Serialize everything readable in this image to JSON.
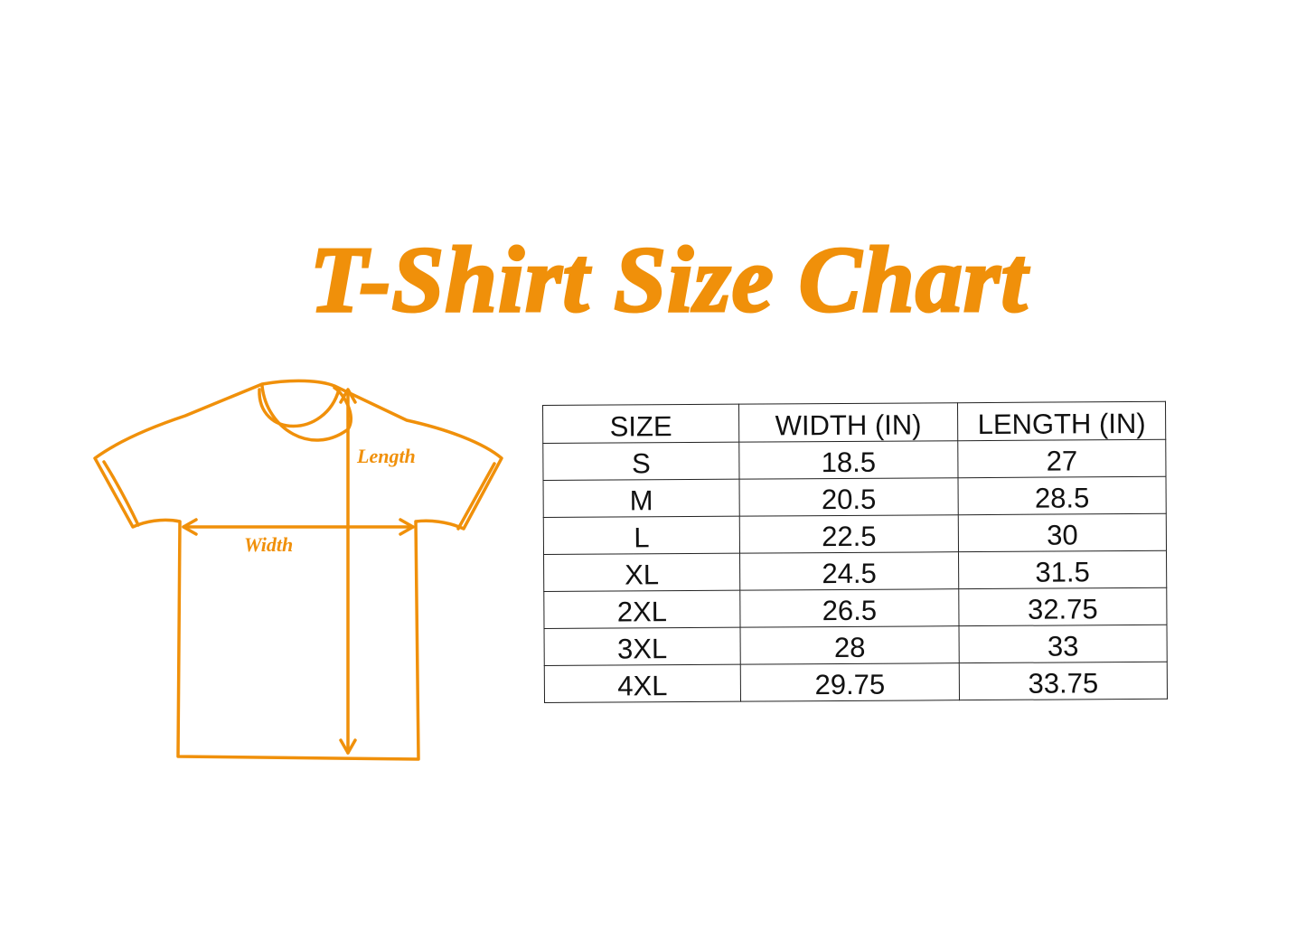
{
  "title": "T-Shirt Size Chart",
  "accent_color": "#F0900A",
  "diagram": {
    "length_label": "Length",
    "width_label": "Width"
  },
  "table": {
    "headers": [
      "SIZE",
      "WIDTH (IN)",
      "LENGTH (IN)"
    ],
    "rows": [
      [
        "S",
        "18.5",
        "27"
      ],
      [
        "M",
        "20.5",
        "28.5"
      ],
      [
        "L",
        "22.5",
        "30"
      ],
      [
        "XL",
        "24.5",
        "31.5"
      ],
      [
        "2XL",
        "26.5",
        "32.75"
      ],
      [
        "3XL",
        "28",
        "33"
      ],
      [
        "4XL",
        "29.75",
        "33.75"
      ]
    ]
  }
}
